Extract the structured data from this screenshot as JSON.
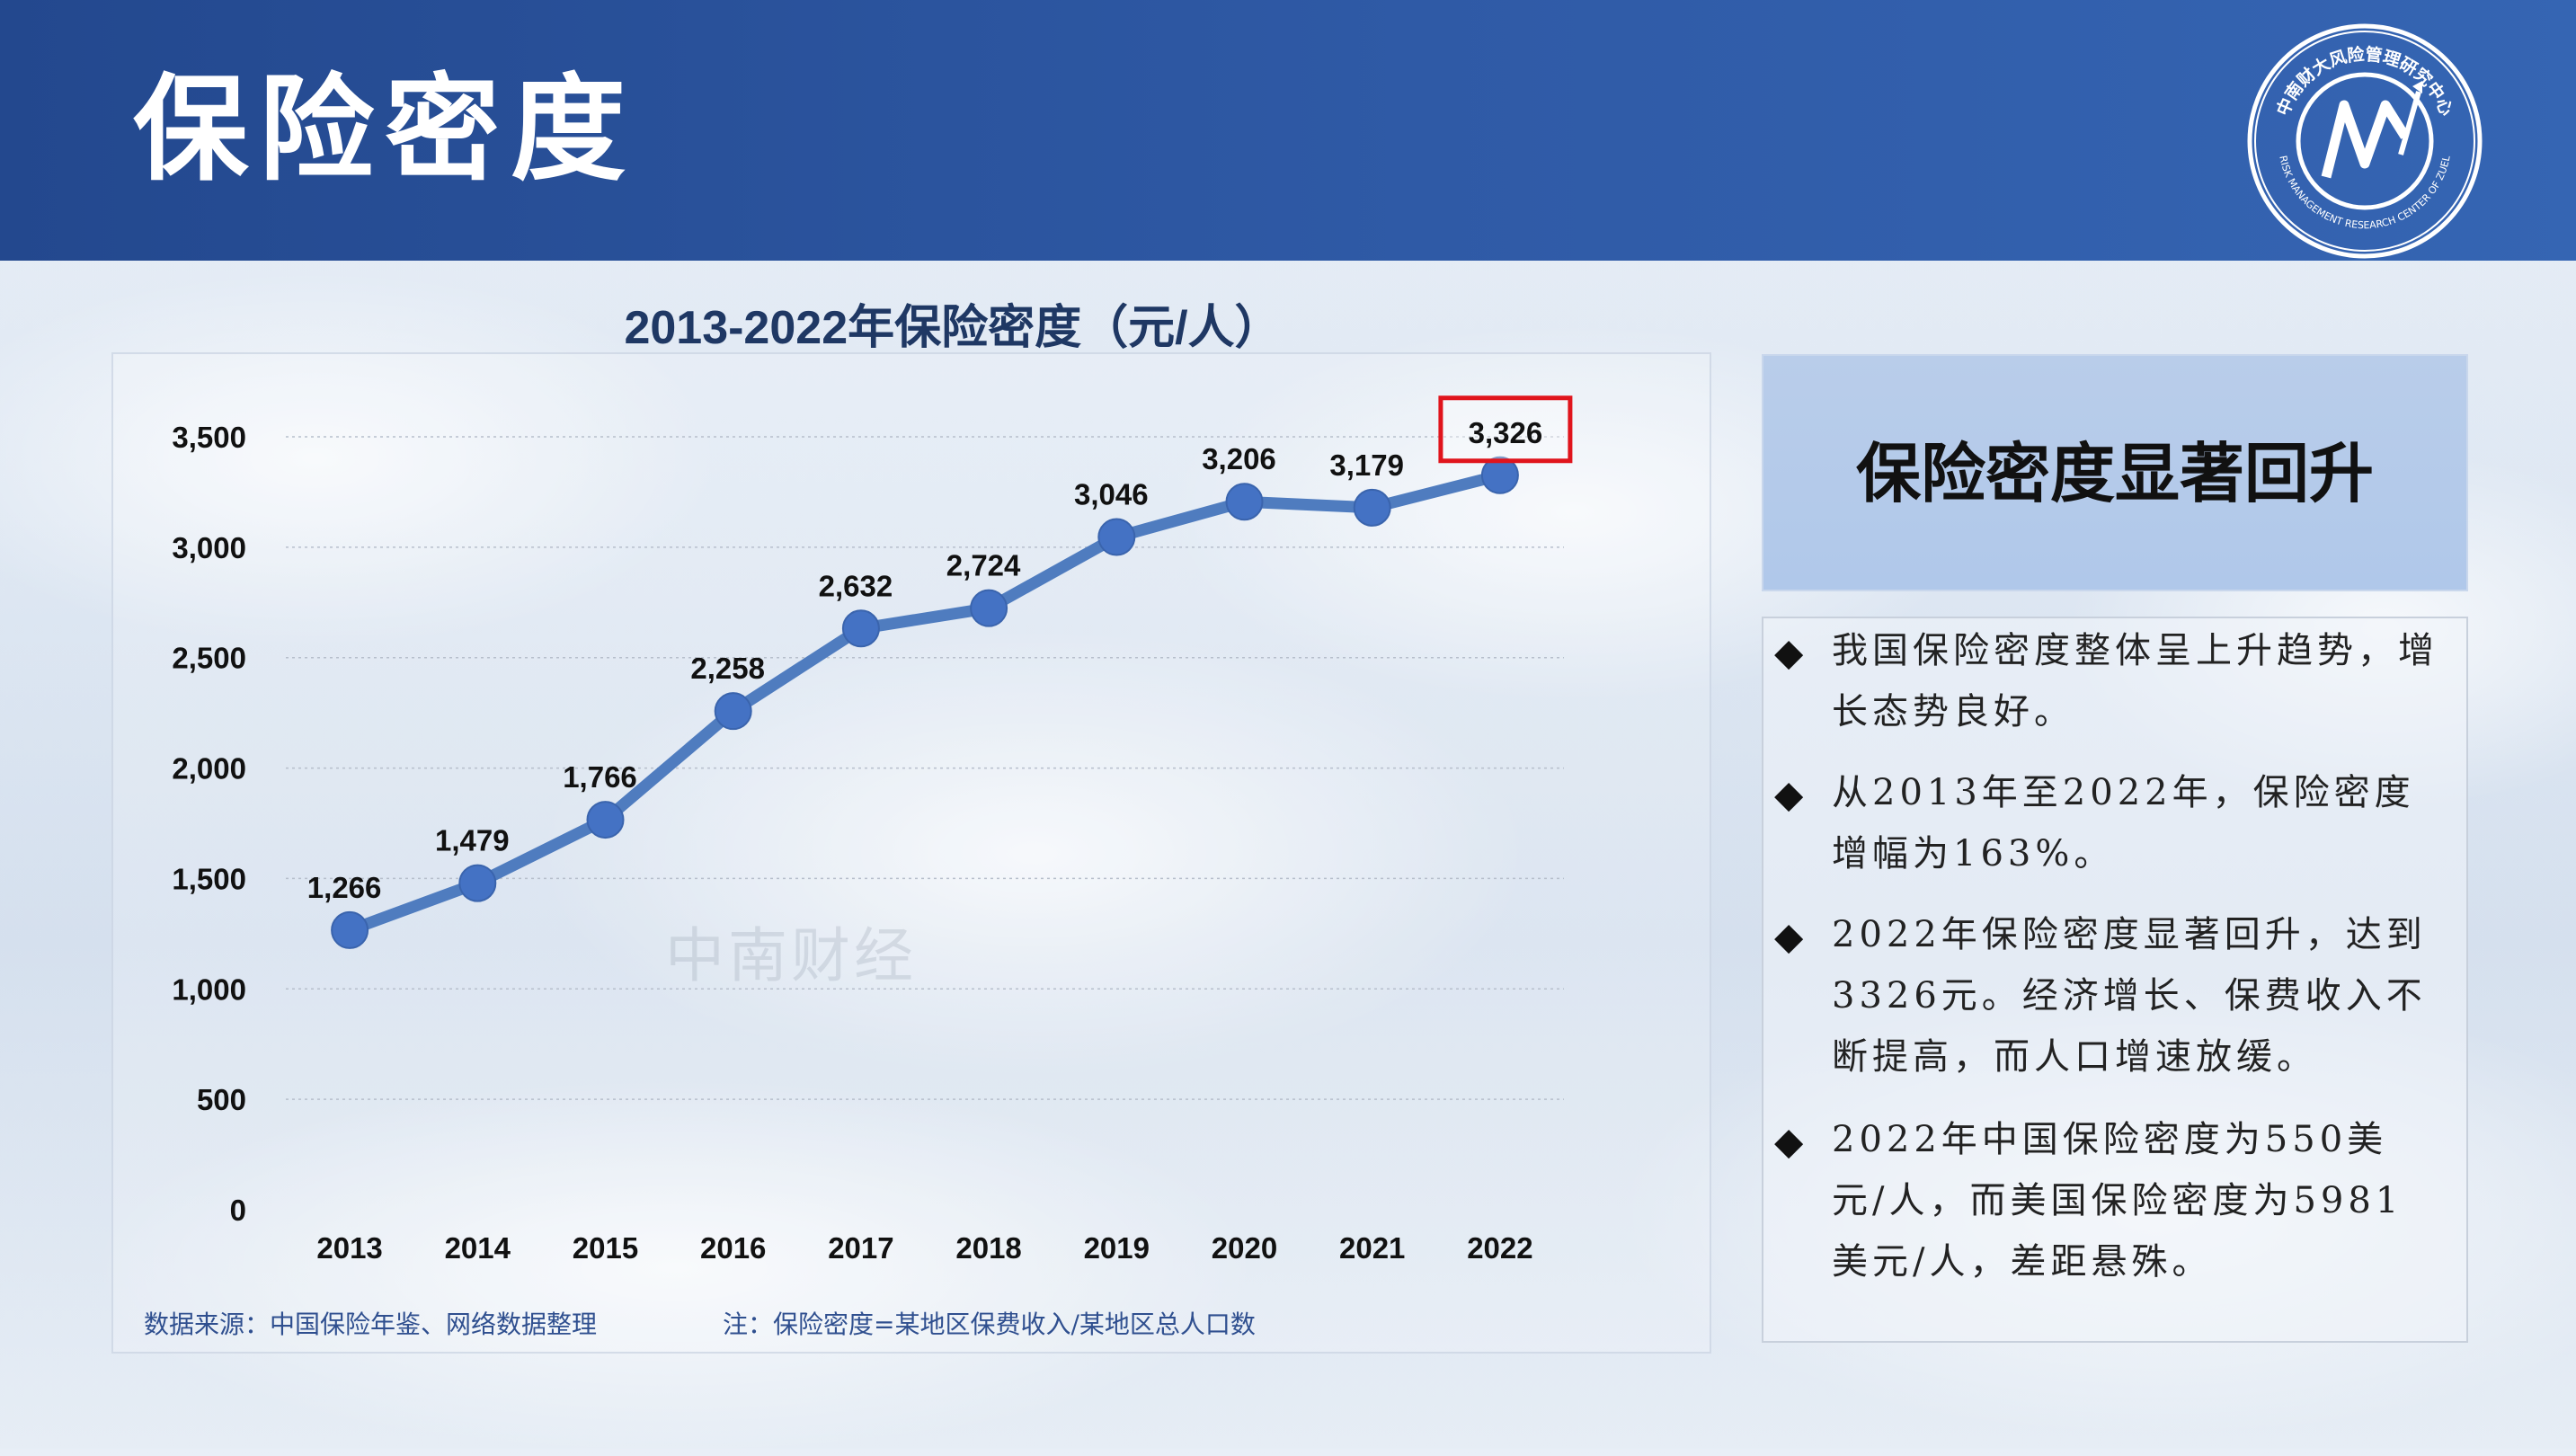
{
  "header": {
    "title": "保险密度",
    "logo_text_top": "中南财大风险管理研究中心",
    "logo_text_bottom": "RISK MANAGEMENT RESEARCH CENTER OF ZUEL"
  },
  "chart_data": {
    "type": "line",
    "title": "2013-2022年保险密度（元/人）",
    "categories": [
      "2013",
      "2014",
      "2015",
      "2016",
      "2017",
      "2018",
      "2019",
      "2020",
      "2021",
      "2022"
    ],
    "values": [
      1266,
      1479,
      1766,
      2258,
      2632,
      2724,
      3046,
      3206,
      3179,
      3326
    ],
    "value_labels": [
      "1,266",
      "1,479",
      "1,766",
      "2,258",
      "2,632",
      "2,724",
      "3,046",
      "3,206",
      "3,179",
      "3,326"
    ],
    "yticks": [
      0,
      500,
      1000,
      1500,
      2000,
      2500,
      3000,
      3500
    ],
    "ytick_labels": [
      "0",
      "500",
      "1,000",
      "1,500",
      "2,000",
      "2,500",
      "3,000",
      "3,500"
    ],
    "ylim": [
      0,
      3500
    ],
    "xlabel": "",
    "ylabel": "",
    "grid": true,
    "highlighted_category": "2022",
    "colors": {
      "line": "#4f7cbf",
      "marker": "#4472c4",
      "highlight_box": "#e0141c"
    }
  },
  "watermark": "中南财经",
  "footnotes": {
    "source": "数据来源：中国保险年鉴、网络数据整理",
    "note": "注：保险密度=某地区保费收入/某地区总人口数"
  },
  "highlight": {
    "text": "保险密度显著回升"
  },
  "bullets": [
    "我国保险密度整体呈上升趋势，增长态势良好。",
    "从2013年至2022年，保险密度增幅为163%。",
    "2022年保险密度显著回升，达到3326元。经济增长、保费收入不断提高，而人口增速放缓。",
    "2022年中国保险密度为550美元/人，而美国保险密度为5981美元/人，差距悬殊。"
  ],
  "bullet_symbol": "◆"
}
